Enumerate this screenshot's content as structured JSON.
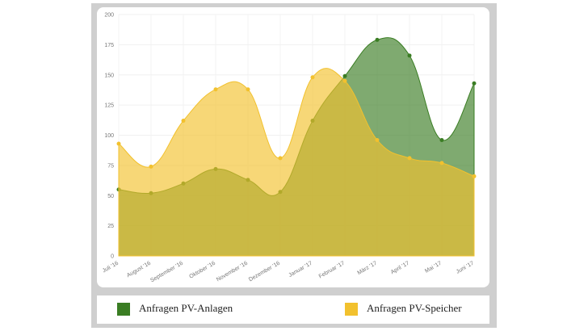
{
  "chart_data": {
    "type": "line",
    "area": true,
    "smooth": true,
    "grid": true,
    "categories": [
      "Juli '16",
      "August '16",
      "September '16",
      "Oktober '16",
      "November '16",
      "Dezember '16",
      "Januar '17",
      "Februar '17",
      "März '17",
      "April '17",
      "Mai '17",
      "Juni '17"
    ],
    "series": [
      {
        "name": "Anfragen PV-Anlagen",
        "color": "#3a7d23",
        "values": [
          55,
          52,
          60,
          72,
          63,
          53,
          112,
          149,
          179,
          166,
          96,
          143
        ]
      },
      {
        "name": "Anfragen PV-Speicher",
        "color": "#f2c12e",
        "values": [
          93,
          74,
          112,
          138,
          138,
          81,
          148,
          145,
          96,
          81,
          77,
          66
        ]
      }
    ],
    "ylim": [
      0,
      200
    ],
    "yticks": [
      0,
      25,
      50,
      75,
      100,
      125,
      150,
      175,
      200
    ]
  }
}
